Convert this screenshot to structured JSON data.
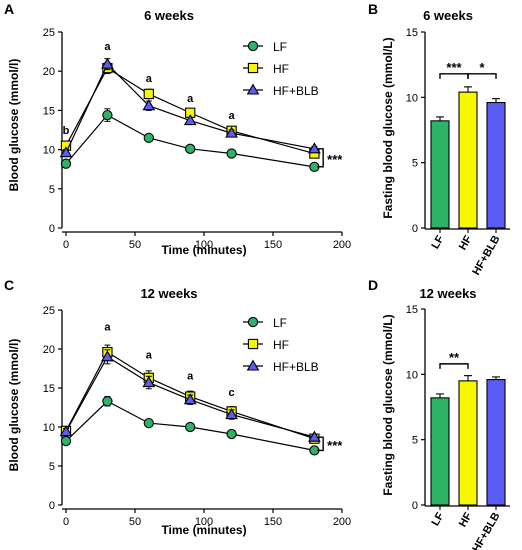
{
  "colors": {
    "LF": "#2db367",
    "HF": "#f7f700",
    "HF+BLB": "#5b5bf5",
    "axis": "#000000"
  },
  "chart_data": [
    {
      "panel": "A",
      "type": "line",
      "title": "6 weeks",
      "xlabel": "Time (minutes)",
      "ylabel": "Blood glucose (mmol/l)",
      "xlim": [
        0,
        200
      ],
      "ylim": [
        0,
        25
      ],
      "xticks": [
        0,
        50,
        100,
        150,
        200
      ],
      "yticks": [
        0,
        5,
        10,
        15,
        20,
        25
      ],
      "legend_position": "top-right",
      "x": [
        0,
        30,
        60,
        90,
        120,
        180
      ],
      "series": [
        {
          "name": "LF",
          "marker": "circle",
          "values": [
            8.2,
            14.4,
            11.5,
            10.1,
            9.5,
            7.8
          ],
          "errors": [
            0.3,
            0.8,
            0.4,
            0.3,
            0.3,
            0.3
          ]
        },
        {
          "name": "HF",
          "marker": "square",
          "values": [
            10.5,
            20.4,
            17.1,
            14.7,
            12.4,
            9.5
          ],
          "errors": [
            0.4,
            0.7,
            0.6,
            0.4,
            0.4,
            0.3
          ]
        },
        {
          "name": "HF+BLB",
          "marker": "triangle",
          "values": [
            9.6,
            20.9,
            15.6,
            13.7,
            12.1,
            10.1
          ],
          "errors": [
            0.4,
            0.7,
            0.6,
            0.4,
            0.4,
            0.3
          ]
        }
      ],
      "point_annotations": [
        {
          "x": 0,
          "y": 12.0,
          "text": "b"
        },
        {
          "x": 30,
          "y": 22.7,
          "text": "a"
        },
        {
          "x": 60,
          "y": 18.6,
          "text": "a"
        },
        {
          "x": 90,
          "y": 16.1,
          "text": "a"
        },
        {
          "x": 120,
          "y": 13.9,
          "text": "a"
        }
      ],
      "bracket": {
        "x": 182,
        "y_low": 7.8,
        "y_high": 10.1,
        "text": "***"
      }
    },
    {
      "panel": "B",
      "type": "bar",
      "title": "6 weeks",
      "xlabel": "",
      "ylabel": "Fasting blood glucose (mmol/L)",
      "ylim": [
        0,
        15
      ],
      "yticks": [
        0,
        5,
        10,
        15
      ],
      "categories": [
        "LF",
        "HF",
        "HF+BLB"
      ],
      "values": [
        8.2,
        10.4,
        9.6
      ],
      "errors": [
        0.3,
        0.4,
        0.3
      ],
      "significance": [
        {
          "from": 0,
          "to": 1,
          "y": 11.8,
          "text": "***"
        },
        {
          "from": 1,
          "to": 2,
          "y": 11.8,
          "text": "*"
        }
      ]
    },
    {
      "panel": "C",
      "type": "line",
      "title": "12 weeks",
      "xlabel": "Time (minutes)",
      "ylabel": "Blood glucose (mmol/l)",
      "xlim": [
        0,
        200
      ],
      "ylim": [
        0,
        25
      ],
      "xticks": [
        0,
        50,
        100,
        150,
        200
      ],
      "yticks": [
        0,
        5,
        10,
        15,
        20,
        25
      ],
      "legend_position": "top-right",
      "x": [
        0,
        30,
        60,
        90,
        120,
        180
      ],
      "series": [
        {
          "name": "LF",
          "marker": "circle",
          "values": [
            8.2,
            13.3,
            10.5,
            10.0,
            9.1,
            7.0
          ],
          "errors": [
            0.3,
            0.6,
            0.3,
            0.3,
            0.3,
            0.3
          ]
        },
        {
          "name": "HF",
          "marker": "square",
          "values": [
            9.5,
            19.6,
            16.3,
            13.9,
            12.0,
            8.5
          ],
          "errors": [
            0.4,
            0.9,
            0.9,
            0.7,
            0.6,
            0.4
          ]
        },
        {
          "name": "HF+BLB",
          "marker": "triangle",
          "values": [
            9.4,
            19.0,
            15.7,
            13.5,
            11.6,
            8.7
          ],
          "errors": [
            0.4,
            0.9,
            0.8,
            0.6,
            0.6,
            0.4
          ]
        }
      ],
      "point_annotations": [
        {
          "x": 30,
          "y": 22.4,
          "text": "a"
        },
        {
          "x": 60,
          "y": 18.8,
          "text": "a"
        },
        {
          "x": 90,
          "y": 16.1,
          "text": "a"
        },
        {
          "x": 120,
          "y": 14.0,
          "text": "c"
        }
      ],
      "bracket": {
        "x": 182,
        "y_low": 7.0,
        "y_high": 8.7,
        "text": "***"
      }
    },
    {
      "panel": "D",
      "type": "bar",
      "title": "12 weeks",
      "xlabel": "",
      "ylabel": "Fasting blood glucose (mmol/L)",
      "ylim": [
        0,
        15
      ],
      "yticks": [
        0,
        5,
        10,
        15
      ],
      "categories": [
        "LF",
        "HF",
        "HF+BLB"
      ],
      "values": [
        8.2,
        9.5,
        9.6
      ],
      "errors": [
        0.3,
        0.4,
        0.2
      ],
      "significance": [
        {
          "from": 0,
          "to": 1,
          "y": 10.8,
          "text": "**"
        }
      ]
    }
  ]
}
